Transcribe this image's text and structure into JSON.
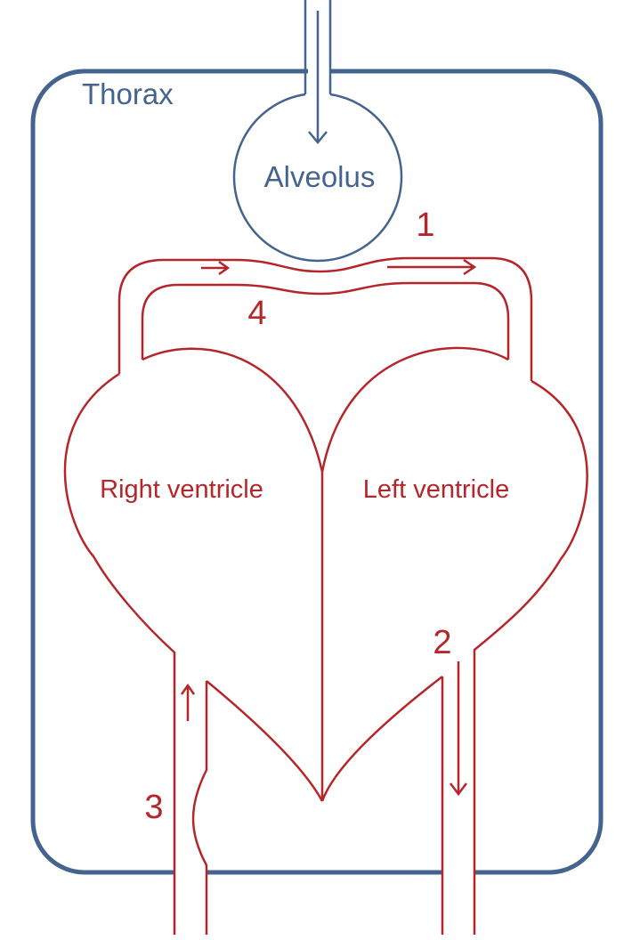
{
  "colors": {
    "blue": "#44648f",
    "red": "#b5262b",
    "background": "#ffffff"
  },
  "labels": {
    "thorax": "Thorax",
    "alveolus": "Alveolus",
    "right_ventricle": "Right ventricle",
    "left_ventricle": "Left ventricle",
    "n1": "1",
    "n2": "2",
    "n3": "3",
    "n4": "4"
  },
  "icons": [
    "arrow-down-icon",
    "arrow-right-icon",
    "arrow-up-icon"
  ]
}
